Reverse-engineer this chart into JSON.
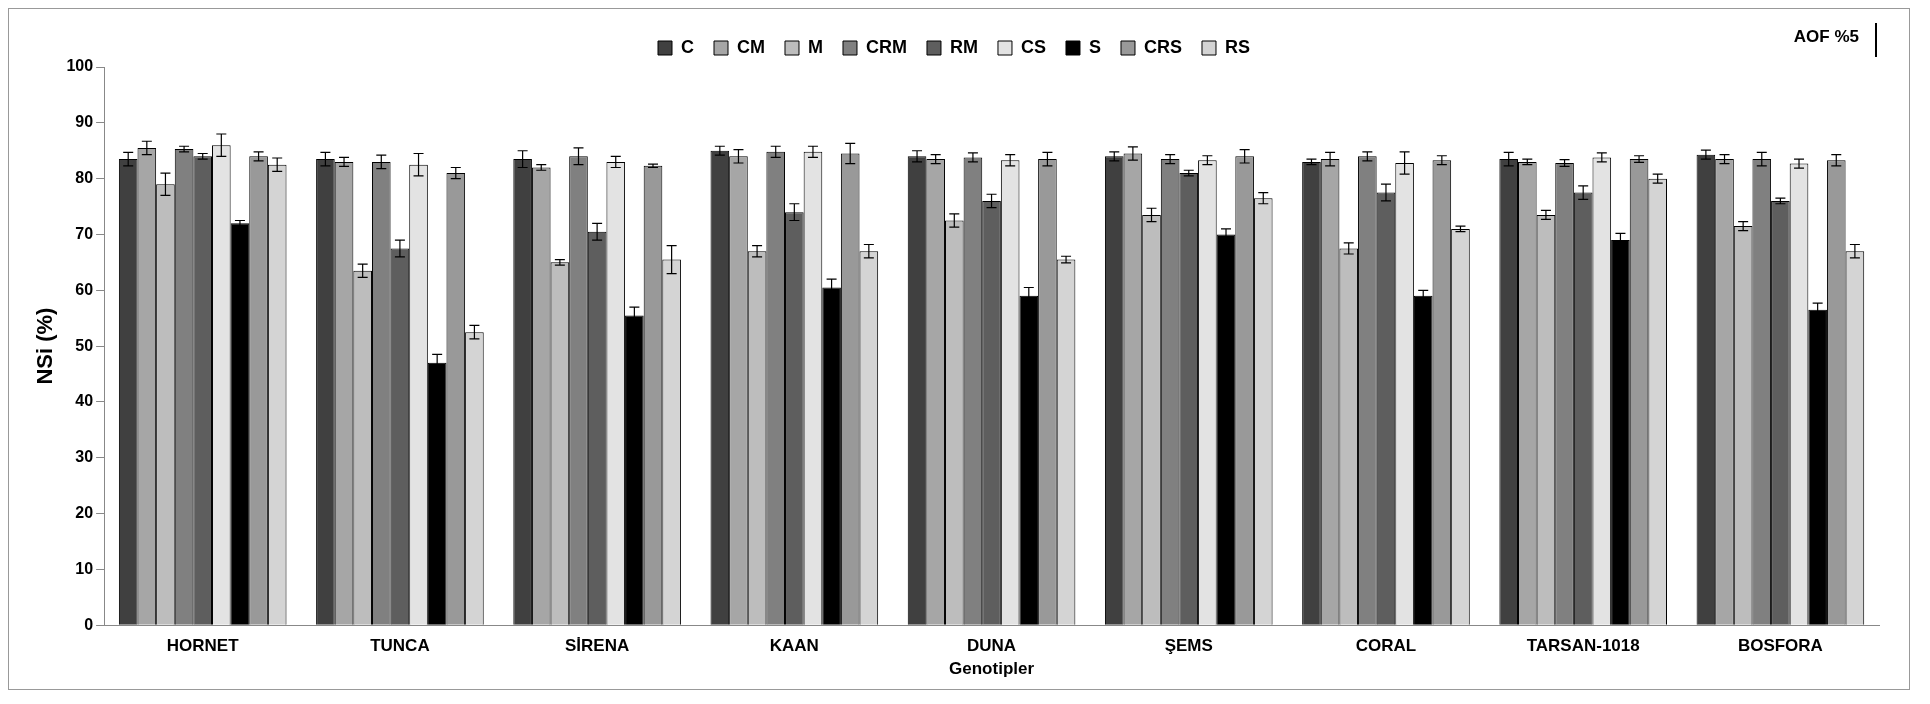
{
  "chart_data": {
    "type": "bar",
    "xlabel": "Genotipler",
    "ylabel": "NSi (%)",
    "categories": [
      "HORNET",
      "TUNCA",
      "SİRENA",
      "KAAN",
      "DUNA",
      "ŞEMS",
      "CORAL",
      "TARSAN-1018",
      "BOSFORA"
    ],
    "ylim": [
      0,
      100
    ],
    "yticks": [
      0,
      10,
      20,
      30,
      40,
      50,
      60,
      70,
      80,
      90,
      100
    ],
    "grid": false,
    "legend": "top",
    "annotations": [
      "AOF %5"
    ],
    "series": [
      {
        "name": "C",
        "color": "#404040",
        "values": [
          83.5,
          83.5,
          83.5,
          85,
          84,
          84,
          83,
          83.5,
          84.3
        ],
        "errors": [
          1.2,
          1.2,
          1.5,
          0.8,
          1,
          0.8,
          0.5,
          1.2,
          0.8
        ]
      },
      {
        "name": "CM",
        "color": "#a6a6a6",
        "values": [
          85.5,
          83,
          82,
          84,
          83.5,
          84.5,
          83.5,
          83,
          83.5
        ],
        "errors": [
          1.2,
          0.8,
          0.5,
          1.2,
          0.8,
          1.2,
          1.2,
          0.5,
          0.8
        ]
      },
      {
        "name": "M",
        "color": "#bdbdbd",
        "values": [
          79,
          63.5,
          65,
          67,
          72.5,
          73.5,
          67.5,
          73.5,
          71.5
        ],
        "errors": [
          2,
          1.2,
          0.5,
          1,
          1.2,
          1.2,
          1,
          0.8,
          0.8
        ]
      },
      {
        "name": "CRM",
        "color": "#808080",
        "values": [
          85.3,
          83,
          84,
          84.8,
          83.8,
          83.5,
          84,
          82.8,
          83.5
        ],
        "errors": [
          0.5,
          1.2,
          1.5,
          1,
          0.8,
          0.8,
          0.8,
          0.6,
          1.2
        ]
      },
      {
        "name": "RM",
        "color": "#5e5e5e",
        "values": [
          84,
          67.5,
          70.5,
          74,
          76,
          81,
          77.5,
          77.5,
          76
        ],
        "errors": [
          0.5,
          1.5,
          1.5,
          1.5,
          1.2,
          0.5,
          1.5,
          1.2,
          0.5
        ]
      },
      {
        "name": "CS",
        "color": "#e3e3e3",
        "values": [
          86,
          82.5,
          83,
          84.8,
          83.3,
          83.3,
          82.8,
          83.8,
          82.7
        ],
        "errors": [
          2,
          2,
          1,
          1,
          1,
          0.8,
          2,
          0.8,
          0.8
        ]
      },
      {
        "name": "S",
        "color": "#000000",
        "values": [
          72,
          47,
          55.5,
          60.5,
          59,
          70,
          59,
          69,
          56.5
        ],
        "errors": [
          0.5,
          1.5,
          1.5,
          1.5,
          1.5,
          1,
          1,
          1.2,
          1.2
        ]
      },
      {
        "name": "CRS",
        "color": "#999999",
        "values": [
          84,
          81,
          82.3,
          84.5,
          83.5,
          84,
          83.3,
          83.5,
          83.3
        ],
        "errors": [
          0.8,
          1,
          0.3,
          1.8,
          1.2,
          1.2,
          0.8,
          0.6,
          1
        ]
      },
      {
        "name": "RS",
        "color": "#d4d4d4",
        "values": [
          82.5,
          52.5,
          65.5,
          67,
          65.5,
          76.5,
          71,
          80,
          67
        ],
        "errors": [
          1.2,
          1.2,
          2.5,
          1.2,
          0.6,
          1,
          0.5,
          0.8,
          1.2
        ]
      }
    ]
  }
}
